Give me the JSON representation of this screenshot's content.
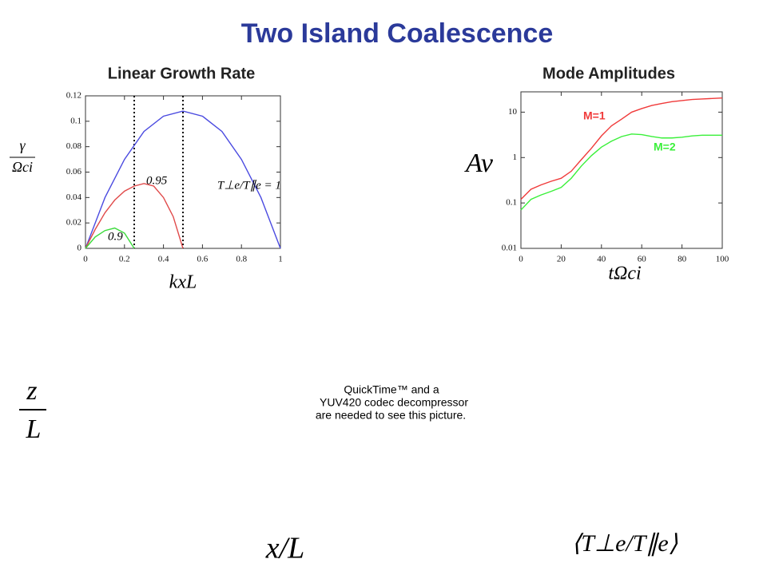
{
  "title": "Two Island Coalescence",
  "chart_data": [
    {
      "type": "line",
      "title": "Linear Growth Rate",
      "ylabel": {
        "num": "γ",
        "den": "Ωci"
      },
      "xlabel": "kxL",
      "xlim": [
        0,
        1
      ],
      "xticks": [
        0,
        0.2,
        0.4,
        0.6,
        0.8,
        1
      ],
      "ylim": [
        0,
        0.12
      ],
      "yticks": [
        0,
        0.02,
        0.04,
        0.06,
        0.08,
        0.1,
        0.12
      ],
      "vlines": [
        0.25,
        0.5
      ],
      "series": [
        {
          "name": "T⊥e/T∥e = 1",
          "color": "#4a4ae0",
          "x": [
            0,
            0.1,
            0.2,
            0.3,
            0.4,
            0.5,
            0.6,
            0.7,
            0.8,
            0.9,
            1
          ],
          "values": [
            0,
            0.04,
            0.07,
            0.092,
            0.104,
            0.108,
            0.104,
            0.092,
            0.07,
            0.04,
            0
          ]
        },
        {
          "name": "0.95",
          "color": "#e04a4a",
          "x": [
            0,
            0.05,
            0.1,
            0.15,
            0.2,
            0.25,
            0.3,
            0.35,
            0.4,
            0.45,
            0.5
          ],
          "values": [
            0,
            0.015,
            0.028,
            0.038,
            0.045,
            0.049,
            0.051,
            0.049,
            0.04,
            0.025,
            0
          ]
        },
        {
          "name": "0.9",
          "color": "#3ada3a",
          "x": [
            0,
            0.05,
            0.1,
            0.15,
            0.2,
            0.25
          ],
          "values": [
            0,
            0.009,
            0.014,
            0.016,
            0.012,
            0
          ]
        }
      ]
    },
    {
      "type": "line",
      "title": "Mode Amplitudes",
      "yscale": "log",
      "ylabel": {
        "num": "Av"
      },
      "xlabel": "tΩci",
      "xlim": [
        0,
        100
      ],
      "xticks": [
        0,
        20,
        40,
        60,
        80,
        100
      ],
      "ylim": [
        0.01,
        28
      ],
      "yticks": [
        0.01,
        0.1,
        1,
        10
      ],
      "series": [
        {
          "name": "M=1",
          "color": "#f03a3a",
          "x": [
            0,
            5,
            10,
            15,
            20,
            25,
            30,
            35,
            40,
            45,
            50,
            55,
            60,
            65,
            70,
            75,
            80,
            85,
            90,
            95,
            100
          ],
          "values": [
            0.12,
            0.2,
            0.25,
            0.3,
            0.35,
            0.5,
            0.9,
            1.6,
            3,
            5,
            7,
            10,
            12,
            14,
            15.5,
            17,
            18,
            19,
            19.5,
            20,
            20.5
          ]
        },
        {
          "name": "M=2",
          "color": "#3af03a",
          "x": [
            0,
            5,
            10,
            15,
            20,
            25,
            30,
            35,
            40,
            45,
            50,
            55,
            60,
            65,
            70,
            75,
            80,
            85,
            90,
            95,
            100
          ],
          "values": [
            0.07,
            0.12,
            0.15,
            0.18,
            0.22,
            0.35,
            0.65,
            1.1,
            1.7,
            2.3,
            2.9,
            3.3,
            3.2,
            2.9,
            2.7,
            2.7,
            2.8,
            3,
            3.1,
            3.1,
            3.1
          ]
        }
      ]
    }
  ],
  "movie": {
    "ylabel": {
      "num": "z",
      "den": "L"
    },
    "xlabel": "x/L",
    "colorbar_label": "⟨T⊥e/T∥e⟩",
    "message": [
      "QuickTime™ and a",
      "YUV420 codec decompressor",
      "are needed to see this picture."
    ]
  }
}
